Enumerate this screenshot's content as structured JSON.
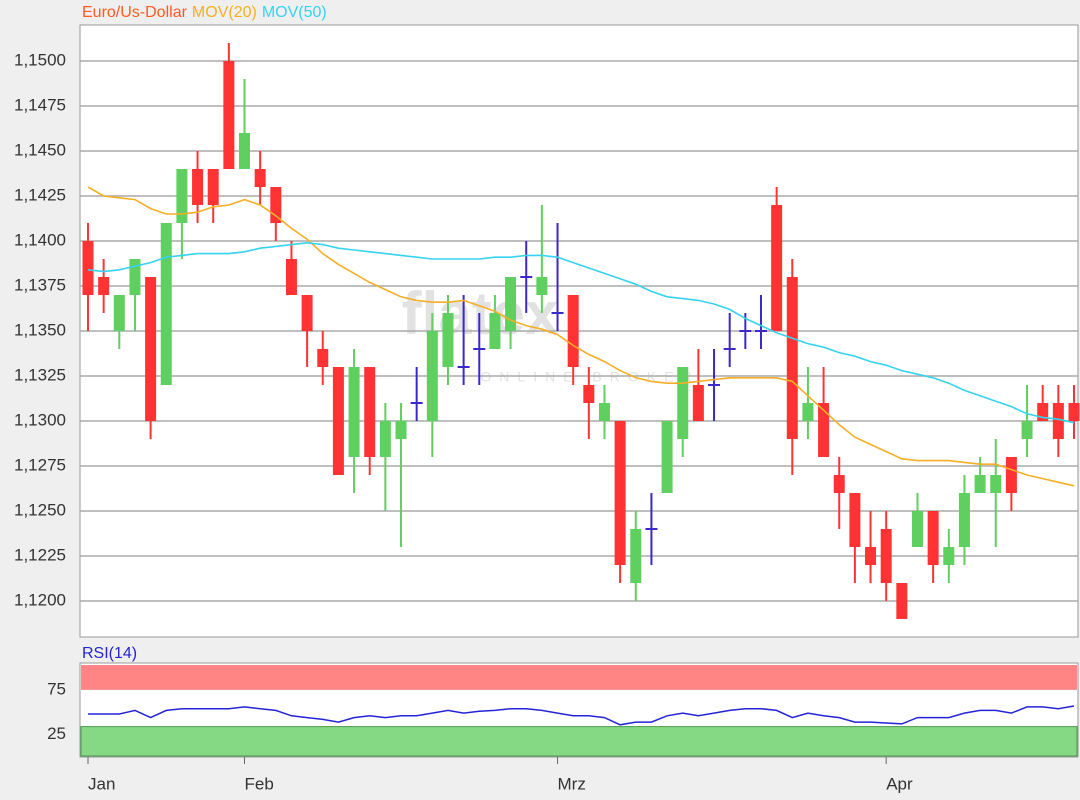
{
  "chart_data": [
    {
      "type": "candlestick",
      "name": "Euro/Us-Dollar",
      "name_color": "#ff5a1f",
      "up_color": "#5fcf5f",
      "down_color": "#ff3333",
      "doji_color": "#3a28c8",
      "watermark": "flatex",
      "watermark_subtitle": "ONLINE BROKER",
      "categories": [
        "Jan",
        null,
        null,
        null,
        null,
        null,
        null,
        null,
        null,
        null,
        "Feb",
        null,
        null,
        null,
        null,
        null,
        null,
        null,
        null,
        null,
        null,
        null,
        null,
        null,
        null,
        null,
        null,
        null,
        null,
        null,
        "Mrz",
        null,
        null,
        null,
        null,
        null,
        null,
        null,
        null,
        null,
        null,
        null,
        null,
        null,
        null,
        null,
        null,
        null,
        null,
        null,
        null,
        "Apr",
        null,
        null,
        null,
        null,
        null,
        null,
        null,
        null,
        null,
        null,
        null,
        null
      ],
      "open": [
        1.14,
        1.138,
        1.135,
        1.137,
        1.138,
        1.132,
        1.141,
        1.144,
        1.144,
        1.15,
        1.144,
        1.144,
        1.143,
        1.139,
        1.137,
        1.134,
        1.133,
        1.128,
        1.133,
        1.128,
        1.129,
        1.131,
        1.13,
        1.133,
        1.133,
        1.134,
        1.134,
        1.135,
        1.138,
        1.137,
        1.136,
        1.137,
        1.132,
        1.13,
        1.13,
        1.121,
        1.124,
        1.126,
        1.129,
        1.132,
        1.132,
        1.134,
        1.135,
        1.135,
        1.142,
        1.138,
        1.13,
        1.131,
        1.127,
        1.126,
        1.123,
        1.124,
        1.121,
        1.123,
        1.125,
        1.122,
        1.123,
        1.126,
        1.126,
        1.128,
        1.129,
        1.131,
        1.131,
        1.131
      ],
      "high": [
        1.141,
        1.139,
        1.137,
        1.139,
        1.138,
        1.141,
        1.144,
        1.145,
        1.144,
        1.151,
        1.149,
        1.145,
        1.143,
        1.14,
        1.137,
        1.135,
        1.133,
        1.134,
        1.133,
        1.131,
        1.131,
        1.133,
        1.136,
        1.137,
        1.137,
        1.136,
        1.137,
        1.138,
        1.14,
        1.142,
        1.141,
        1.137,
        1.133,
        1.132,
        1.13,
        1.125,
        1.126,
        1.13,
        1.133,
        1.134,
        1.134,
        1.136,
        1.136,
        1.137,
        1.143,
        1.139,
        1.133,
        1.133,
        1.128,
        1.126,
        1.125,
        1.125,
        1.121,
        1.126,
        1.125,
        1.124,
        1.127,
        1.128,
        1.129,
        1.128,
        1.132,
        1.132,
        1.132,
        1.132
      ],
      "low": [
        1.135,
        1.136,
        1.134,
        1.135,
        1.129,
        1.132,
        1.139,
        1.141,
        1.141,
        1.144,
        1.144,
        1.142,
        1.14,
        1.137,
        1.133,
        1.132,
        1.127,
        1.126,
        1.127,
        1.125,
        1.123,
        1.13,
        1.128,
        1.132,
        1.132,
        1.132,
        1.134,
        1.134,
        1.136,
        1.136,
        1.135,
        1.132,
        1.129,
        1.129,
        1.121,
        1.12,
        1.122,
        1.126,
        1.128,
        1.13,
        1.13,
        1.133,
        1.134,
        1.134,
        1.135,
        1.127,
        1.129,
        1.128,
        1.124,
        1.121,
        1.121,
        1.12,
        1.119,
        1.123,
        1.121,
        1.121,
        1.122,
        1.126,
        1.123,
        1.125,
        1.128,
        1.13,
        1.128,
        1.129
      ],
      "close": [
        1.137,
        1.137,
        1.137,
        1.139,
        1.13,
        1.141,
        1.144,
        1.142,
        1.142,
        1.144,
        1.146,
        1.143,
        1.141,
        1.137,
        1.135,
        1.133,
        1.127,
        1.133,
        1.128,
        1.13,
        1.13,
        1.131,
        1.135,
        1.136,
        1.133,
        1.134,
        1.136,
        1.138,
        1.138,
        1.138,
        1.136,
        1.133,
        1.131,
        1.131,
        1.122,
        1.124,
        1.124,
        1.13,
        1.133,
        1.13,
        1.132,
        1.134,
        1.135,
        1.135,
        1.135,
        1.129,
        1.131,
        1.128,
        1.126,
        1.123,
        1.122,
        1.121,
        1.119,
        1.125,
        1.122,
        1.123,
        1.126,
        1.127,
        1.127,
        1.126,
        1.13,
        1.13,
        1.129,
        1.13
      ],
      "series": [
        {
          "name": "MOV(20)",
          "color": "#f5ae25",
          "values": [
            1.143,
            1.1425,
            1.1424,
            1.1423,
            1.1418,
            1.1415,
            1.1415,
            1.1416,
            1.1419,
            1.142,
            1.1423,
            1.142,
            1.1414,
            1.1407,
            1.1401,
            1.1393,
            1.1387,
            1.1382,
            1.1377,
            1.1373,
            1.1369,
            1.1367,
            1.1366,
            1.1366,
            1.1367,
            1.1364,
            1.1361,
            1.1356,
            1.1353,
            1.1351,
            1.1348,
            1.1342,
            1.1337,
            1.1333,
            1.1328,
            1.1324,
            1.1322,
            1.1321,
            1.1321,
            1.1322,
            1.1323,
            1.1324,
            1.1324,
            1.1324,
            1.1324,
            1.1322,
            1.1314,
            1.1306,
            1.1298,
            1.1291,
            1.1287,
            1.1283,
            1.1279,
            1.1278,
            1.1278,
            1.1278,
            1.1277,
            1.1276,
            1.1276,
            1.1273,
            1.127,
            1.1268,
            1.1266,
            1.1264
          ]
        },
        {
          "name": "MOV(50)",
          "color": "#35d3f0",
          "values": [
            1.1384,
            1.1383,
            1.1384,
            1.1386,
            1.1388,
            1.1391,
            1.1392,
            1.1393,
            1.1393,
            1.1393,
            1.1394,
            1.1396,
            1.1397,
            1.1398,
            1.1399,
            1.1398,
            1.1396,
            1.1395,
            1.1394,
            1.1393,
            1.1392,
            1.1391,
            1.139,
            1.139,
            1.139,
            1.139,
            1.1391,
            1.1391,
            1.1392,
            1.1392,
            1.1391,
            1.1388,
            1.1385,
            1.1382,
            1.1379,
            1.1376,
            1.1372,
            1.1369,
            1.1368,
            1.1367,
            1.1365,
            1.1362,
            1.1357,
            1.1353,
            1.1349,
            1.1346,
            1.1343,
            1.1341,
            1.1338,
            1.1336,
            1.1333,
            1.1331,
            1.1328,
            1.1326,
            1.1324,
            1.1321,
            1.1317,
            1.1314,
            1.1311,
            1.1308,
            1.1304,
            1.1302,
            1.1301,
            1.1299
          ]
        }
      ],
      "ylim": [
        1.118,
        1.152
      ],
      "yticks": [
        {
          "value": 1.12,
          "label": "1,1200"
        },
        {
          "value": 1.1225,
          "label": "1,1225"
        },
        {
          "value": 1.125,
          "label": "1,1250"
        },
        {
          "value": 1.1275,
          "label": "1,1275"
        },
        {
          "value": 1.13,
          "label": "1,1300"
        },
        {
          "value": 1.1325,
          "label": "1,1325"
        },
        {
          "value": 1.135,
          "label": "1,1350"
        },
        {
          "value": 1.1375,
          "label": "1,1375"
        },
        {
          "value": 1.14,
          "label": "1,1400"
        },
        {
          "value": 1.1425,
          "label": "1,1425"
        },
        {
          "value": 1.145,
          "label": "1,1450"
        },
        {
          "value": 1.1475,
          "label": "1,1475"
        },
        {
          "value": 1.15,
          "label": "1,1500"
        }
      ],
      "grid": true
    },
    {
      "type": "line",
      "series": [
        {
          "name": "RSI(14)",
          "color": "#2323d8",
          "values": [
            48,
            48,
            48,
            52,
            44,
            52,
            54,
            54,
            54,
            54,
            56,
            54,
            52,
            46,
            44,
            42,
            39,
            44,
            46,
            44,
            46,
            46,
            49,
            52,
            49,
            51,
            52,
            54,
            54,
            52,
            49,
            46,
            46,
            44,
            36,
            39,
            39,
            46,
            49,
            46,
            49,
            52,
            54,
            54,
            52,
            44,
            49,
            46,
            44,
            39,
            39,
            38,
            37,
            44,
            44,
            44,
            49,
            52,
            52,
            49,
            56,
            56,
            54,
            57
          ]
        }
      ],
      "ylim": [
        0,
        105
      ],
      "yticks": [
        25,
        75
      ],
      "upper_band_color": "#ff8585",
      "lower_band_color": "#85d985"
    }
  ]
}
